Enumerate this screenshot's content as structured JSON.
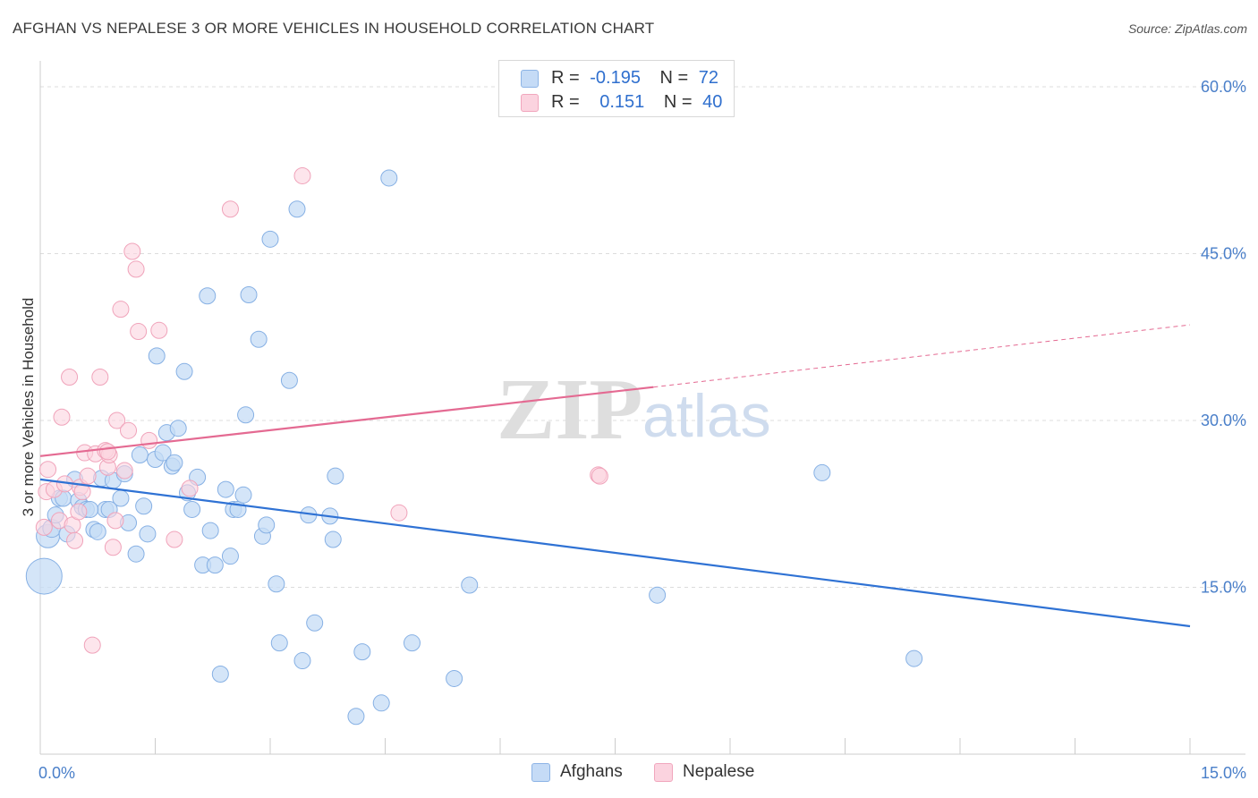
{
  "title": "AFGHAN VS NEPALESE 3 OR MORE VEHICLES IN HOUSEHOLD CORRELATION CHART",
  "source": "Source: ZipAtlas.com",
  "watermark": {
    "zip": "ZIP",
    "atlas": "atlas"
  },
  "legend": {
    "rows": [
      {
        "r_label": "R =",
        "r_value": "-0.195",
        "n_label": "N =",
        "n_value": "72",
        "color": "#a9c8f0"
      },
      {
        "r_label": "R =",
        "r_value": "0.151",
        "n_label": "N =",
        "n_value": "40",
        "color": "#f6b8cb"
      }
    ]
  },
  "bottom_legend": [
    {
      "label": "Afghans",
      "color": "#a9c8f0"
    },
    {
      "label": "Nepalese",
      "color": "#f6b8cb"
    }
  ],
  "chart_data": {
    "type": "scatter",
    "title": "AFGHAN VS NEPALESE 3 OR MORE VEHICLES IN HOUSEHOLD CORRELATION CHART",
    "xlabel": "",
    "ylabel": "3 or more Vehicles in Household",
    "xlim": [
      0,
      15
    ],
    "ylim": [
      0,
      60
    ],
    "x_tick_labels": [
      "0.0%",
      "15.0%"
    ],
    "y_ticks": [
      15,
      30,
      45,
      60
    ],
    "y_tick_labels": [
      "15.0%",
      "30.0%",
      "45.0%",
      "60.0%"
    ],
    "grid": true,
    "legend_position": "top-center",
    "series": [
      {
        "name": "Afghans",
        "color": "#7aa9e6",
        "trend_color": "#2f72d4",
        "trend": {
          "x_start": 0.0,
          "y_start": 24.7,
          "x_end": 15.0,
          "y_end": 11.5
        },
        "points": [
          [
            0.05,
            16.0,
            40
          ],
          [
            0.1,
            19.6,
            26
          ],
          [
            0.15,
            20.3,
            20
          ],
          [
            0.2,
            21.5,
            18
          ],
          [
            0.25,
            23.0,
            18
          ],
          [
            0.3,
            23.0,
            18
          ],
          [
            0.35,
            19.8,
            18
          ],
          [
            0.45,
            24.7,
            18
          ],
          [
            0.5,
            22.8,
            18
          ],
          [
            0.55,
            22.2,
            18
          ],
          [
            0.6,
            22.0,
            18
          ],
          [
            0.7,
            20.2,
            18
          ],
          [
            0.75,
            20.0,
            18
          ],
          [
            0.8,
            24.8,
            18
          ],
          [
            0.85,
            22.0,
            18
          ],
          [
            0.95,
            24.6,
            18
          ],
          [
            1.05,
            23.0,
            18
          ],
          [
            1.1,
            25.2,
            18
          ],
          [
            1.15,
            20.8,
            18
          ],
          [
            1.25,
            18.0,
            18
          ],
          [
            1.3,
            26.9,
            18
          ],
          [
            1.35,
            22.3,
            18
          ],
          [
            1.4,
            19.8,
            18
          ],
          [
            1.5,
            26.5,
            18
          ],
          [
            1.52,
            35.8,
            18
          ],
          [
            1.6,
            27.1,
            18
          ],
          [
            1.65,
            28.9,
            18
          ],
          [
            1.72,
            25.9,
            18
          ],
          [
            1.75,
            26.2,
            18
          ],
          [
            1.8,
            29.3,
            18
          ],
          [
            1.88,
            34.4,
            18
          ],
          [
            1.92,
            23.5,
            18
          ],
          [
            1.98,
            22.0,
            18
          ],
          [
            2.05,
            24.9,
            18
          ],
          [
            2.12,
            17.0,
            18
          ],
          [
            2.18,
            41.2,
            18
          ],
          [
            2.22,
            20.1,
            18
          ],
          [
            2.28,
            17.0,
            18
          ],
          [
            2.35,
            7.2,
            18
          ],
          [
            2.42,
            23.8,
            18
          ],
          [
            2.48,
            17.8,
            18
          ],
          [
            2.52,
            22.0,
            18
          ],
          [
            2.58,
            22.0,
            18
          ],
          [
            2.65,
            23.3,
            18
          ],
          [
            2.68,
            30.5,
            18
          ],
          [
            2.72,
            41.3,
            18
          ],
          [
            2.85,
            37.3,
            18
          ],
          [
            2.9,
            19.6,
            18
          ],
          [
            2.95,
            20.6,
            18
          ],
          [
            3.0,
            46.3,
            18
          ],
          [
            3.08,
            15.3,
            18
          ],
          [
            3.12,
            10.0,
            18
          ],
          [
            3.25,
            33.6,
            18
          ],
          [
            3.35,
            49.0,
            18
          ],
          [
            3.42,
            8.4,
            18
          ],
          [
            3.5,
            21.5,
            18
          ],
          [
            3.58,
            11.8,
            18
          ],
          [
            3.78,
            21.4,
            18
          ],
          [
            3.82,
            19.3,
            18
          ],
          [
            3.85,
            25.0,
            18
          ],
          [
            4.12,
            3.4,
            18
          ],
          [
            4.2,
            9.2,
            18
          ],
          [
            4.45,
            4.6,
            18
          ],
          [
            4.55,
            51.8,
            18
          ],
          [
            4.85,
            10.0,
            18
          ],
          [
            5.4,
            6.8,
            18
          ],
          [
            5.6,
            15.2,
            18
          ],
          [
            8.05,
            14.3,
            18
          ],
          [
            10.2,
            25.3,
            18
          ],
          [
            11.4,
            8.6,
            18
          ],
          [
            0.65,
            22.0,
            18
          ],
          [
            0.9,
            22.0,
            18
          ]
        ]
      },
      {
        "name": "Nepalese",
        "color": "#f3a5bd",
        "trend_color": "#e46a92",
        "trend": {
          "x_start": 0.0,
          "y_start": 26.8,
          "x_end": 8.0,
          "y_end": 33.0,
          "dash_x_end": 15.0,
          "dash_y_end": 38.6
        },
        "points": [
          [
            0.05,
            20.4,
            18
          ],
          [
            0.08,
            23.6,
            18
          ],
          [
            0.1,
            25.6,
            18
          ],
          [
            0.18,
            23.8,
            18
          ],
          [
            0.25,
            21.0,
            18
          ],
          [
            0.28,
            30.3,
            18
          ],
          [
            0.32,
            24.3,
            18
          ],
          [
            0.38,
            33.9,
            18
          ],
          [
            0.42,
            20.6,
            18
          ],
          [
            0.45,
            19.2,
            18
          ],
          [
            0.5,
            21.8,
            18
          ],
          [
            0.52,
            24.0,
            18
          ],
          [
            0.55,
            23.6,
            18
          ],
          [
            0.58,
            27.1,
            18
          ],
          [
            0.62,
            25.0,
            18
          ],
          [
            0.68,
            9.8,
            18
          ],
          [
            0.72,
            27.0,
            18
          ],
          [
            0.78,
            33.9,
            18
          ],
          [
            0.85,
            27.3,
            18
          ],
          [
            0.88,
            25.8,
            18
          ],
          [
            0.9,
            26.9,
            18
          ],
          [
            0.95,
            18.6,
            18
          ],
          [
            0.98,
            21.0,
            18
          ],
          [
            1.0,
            30.0,
            18
          ],
          [
            1.05,
            40.0,
            18
          ],
          [
            1.1,
            25.5,
            18
          ],
          [
            1.15,
            29.1,
            18
          ],
          [
            1.2,
            45.2,
            18
          ],
          [
            1.25,
            43.6,
            18
          ],
          [
            1.28,
            38.0,
            18
          ],
          [
            1.42,
            28.2,
            18
          ],
          [
            1.55,
            38.1,
            18
          ],
          [
            1.75,
            19.3,
            18
          ],
          [
            1.95,
            23.9,
            18
          ],
          [
            2.48,
            49.0,
            18
          ],
          [
            3.42,
            52.0,
            18
          ],
          [
            4.68,
            21.7,
            18
          ],
          [
            7.28,
            25.1,
            18
          ],
          [
            7.3,
            25.0,
            18
          ],
          [
            0.88,
            27.2,
            18
          ]
        ]
      }
    ]
  }
}
